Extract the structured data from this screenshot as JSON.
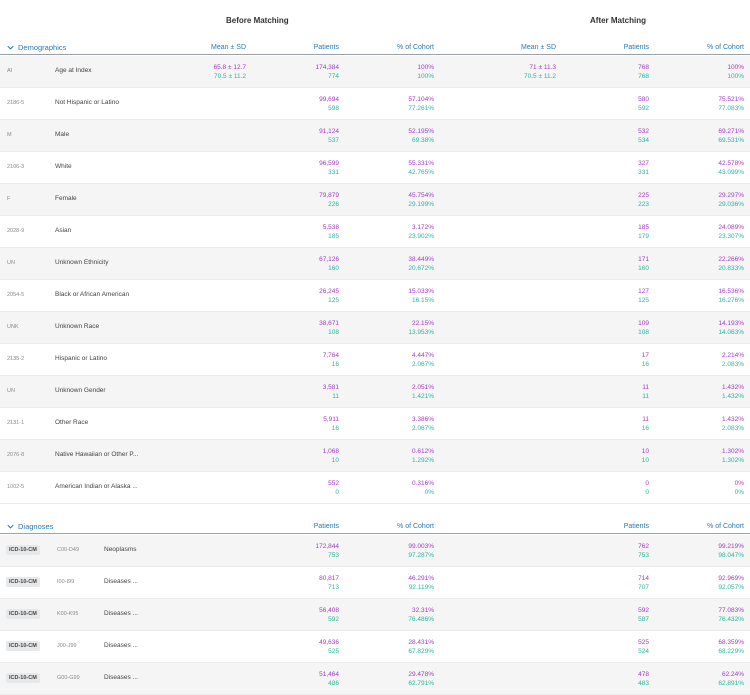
{
  "header": {
    "before": "Before Matching",
    "after": "After Matching"
  },
  "demographics": {
    "title": "Demographics",
    "columns": {
      "mean_before": "Mean ± SD",
      "patients_before": "Patients",
      "pct_before": "% of Cohort",
      "mean_after": "Mean ± SD",
      "patients_after": "Patients",
      "pct_after": "% of Cohort"
    },
    "rows": [
      {
        "code": "AI",
        "label": "Age at Index",
        "mean_b": [
          "65.8 ± 12.7",
          "70.5 ± 11.2"
        ],
        "pat_b": [
          "174,384",
          "774"
        ],
        "pct_b": [
          "100%",
          "100%"
        ],
        "mean_a": [
          "71 ± 11.3",
          "70.5 ± 11.2"
        ],
        "pat_a": [
          "768",
          "768"
        ],
        "pct_a": [
          "100%",
          "100%"
        ]
      },
      {
        "code": "2186-5",
        "label": "Not Hispanic or Latino",
        "mean_b": [
          "",
          ""
        ],
        "pat_b": [
          "99,694",
          "598"
        ],
        "pct_b": [
          "57.104%",
          "77.261%"
        ],
        "mean_a": [
          "",
          ""
        ],
        "pat_a": [
          "580",
          "592"
        ],
        "pct_a": [
          "75.521%",
          "77.083%"
        ]
      },
      {
        "code": "M",
        "label": "Male",
        "mean_b": [
          "",
          ""
        ],
        "pat_b": [
          "91,124",
          "537"
        ],
        "pct_b": [
          "52.195%",
          "69.38%"
        ],
        "mean_a": [
          "",
          ""
        ],
        "pat_a": [
          "532",
          "534"
        ],
        "pct_a": [
          "69.271%",
          "69.531%"
        ]
      },
      {
        "code": "2106-3",
        "label": "White",
        "mean_b": [
          "",
          ""
        ],
        "pat_b": [
          "96,599",
          "331"
        ],
        "pct_b": [
          "55.331%",
          "42.765%"
        ],
        "mean_a": [
          "",
          ""
        ],
        "pat_a": [
          "327",
          "331"
        ],
        "pct_a": [
          "42.578%",
          "43.099%"
        ]
      },
      {
        "code": "F",
        "label": "Female",
        "mean_b": [
          "",
          ""
        ],
        "pat_b": [
          "79,879",
          "226"
        ],
        "pct_b": [
          "45.754%",
          "29.199%"
        ],
        "mean_a": [
          "",
          ""
        ],
        "pat_a": [
          "225",
          "223"
        ],
        "pct_a": [
          "29.297%",
          "29.036%"
        ]
      },
      {
        "code": "2028-9",
        "label": "Asian",
        "mean_b": [
          "",
          ""
        ],
        "pat_b": [
          "5,538",
          "185"
        ],
        "pct_b": [
          "3.172%",
          "23.902%"
        ],
        "mean_a": [
          "",
          ""
        ],
        "pat_a": [
          "185",
          "179"
        ],
        "pct_a": [
          "24.089%",
          "23.307%"
        ]
      },
      {
        "code": "UN",
        "label": "Unknown Ethnicity",
        "mean_b": [
          "",
          ""
        ],
        "pat_b": [
          "67,126",
          "160"
        ],
        "pct_b": [
          "38.449%",
          "20.672%"
        ],
        "mean_a": [
          "",
          ""
        ],
        "pat_a": [
          "171",
          "160"
        ],
        "pct_a": [
          "22.266%",
          "20.833%"
        ]
      },
      {
        "code": "2054-5",
        "label": "Black or African American",
        "mean_b": [
          "",
          ""
        ],
        "pat_b": [
          "26,245",
          "125"
        ],
        "pct_b": [
          "15.033%",
          "16.15%"
        ],
        "mean_a": [
          "",
          ""
        ],
        "pat_a": [
          "127",
          "125"
        ],
        "pct_a": [
          "16.536%",
          "16.276%"
        ]
      },
      {
        "code": "UNK",
        "label": "Unknown Race",
        "mean_b": [
          "",
          ""
        ],
        "pat_b": [
          "38,671",
          "108"
        ],
        "pct_b": [
          "22.15%",
          "13.953%"
        ],
        "mean_a": [
          "",
          ""
        ],
        "pat_a": [
          "109",
          "108"
        ],
        "pct_a": [
          "14.193%",
          "14.063%"
        ]
      },
      {
        "code": "2135-2",
        "label": "Hispanic or Latino",
        "mean_b": [
          "",
          ""
        ],
        "pat_b": [
          "7,764",
          "16"
        ],
        "pct_b": [
          "4.447%",
          "2.067%"
        ],
        "mean_a": [
          "",
          ""
        ],
        "pat_a": [
          "17",
          "16"
        ],
        "pct_a": [
          "2.214%",
          "2.083%"
        ]
      },
      {
        "code": "UN",
        "label": "Unknown Gender",
        "mean_b": [
          "",
          ""
        ],
        "pat_b": [
          "3,581",
          "11"
        ],
        "pct_b": [
          "2.051%",
          "1.421%"
        ],
        "mean_a": [
          "",
          ""
        ],
        "pat_a": [
          "11",
          "11"
        ],
        "pct_a": [
          "1.432%",
          "1.432%"
        ]
      },
      {
        "code": "2131-1",
        "label": "Other Race",
        "mean_b": [
          "",
          ""
        ],
        "pat_b": [
          "5,911",
          "16"
        ],
        "pct_b": [
          "3.386%",
          "2.067%"
        ],
        "mean_a": [
          "",
          ""
        ],
        "pat_a": [
          "11",
          "16"
        ],
        "pct_a": [
          "1.432%",
          "2.083%"
        ]
      },
      {
        "code": "2076-8",
        "label": "Native Hawaiian or Other P...",
        "mean_b": [
          "",
          ""
        ],
        "pat_b": [
          "1,068",
          "10"
        ],
        "pct_b": [
          "0.612%",
          "1.292%"
        ],
        "mean_a": [
          "",
          ""
        ],
        "pat_a": [
          "10",
          "10"
        ],
        "pct_a": [
          "1.302%",
          "1.302%"
        ]
      },
      {
        "code": "1002-5",
        "label": "American Indian or Alaska ...",
        "mean_b": [
          "",
          ""
        ],
        "pat_b": [
          "552",
          "0"
        ],
        "pct_b": [
          "0.316%",
          "0%"
        ],
        "mean_a": [
          "",
          ""
        ],
        "pat_a": [
          "0",
          "0"
        ],
        "pct_a": [
          "0%",
          "0%"
        ]
      }
    ]
  },
  "diagnoses": {
    "title": "Diagnoses",
    "columns": {
      "patients_before": "Patients",
      "pct_before": "% of Cohort",
      "patients_after": "Patients",
      "pct_after": "% of Cohort"
    },
    "rows": [
      {
        "badge": "ICD-10-CM",
        "code": "C00-D49",
        "label": "Neoplasms",
        "pat_b": [
          "172,844",
          "753"
        ],
        "pct_b": [
          "99.003%",
          "97.287%"
        ],
        "pat_a": [
          "762",
          "753"
        ],
        "pct_a": [
          "99.219%",
          "98.047%"
        ]
      },
      {
        "badge": "ICD-10-CM",
        "code": "I00-I99",
        "label": "Diseases ...",
        "pat_b": [
          "80,817",
          "713"
        ],
        "pct_b": [
          "46.291%",
          "92.119%"
        ],
        "pat_a": [
          "714",
          "707"
        ],
        "pct_a": [
          "92.969%",
          "92.057%"
        ]
      },
      {
        "badge": "ICD-10-CM",
        "code": "K00-K95",
        "label": "Diseases ...",
        "pat_b": [
          "56,408",
          "592"
        ],
        "pct_b": [
          "32.31%",
          "76.486%"
        ],
        "pat_a": [
          "592",
          "587"
        ],
        "pct_a": [
          "77.083%",
          "76.432%"
        ]
      },
      {
        "badge": "ICD-10-CM",
        "code": "J00-J99",
        "label": "Diseases ...",
        "pat_b": [
          "49,636",
          "525"
        ],
        "pct_b": [
          "28.431%",
          "67.829%"
        ],
        "pat_a": [
          "525",
          "524"
        ],
        "pct_a": [
          "68.359%",
          "68.229%"
        ]
      },
      {
        "badge": "ICD-10-CM",
        "code": "G00-G99",
        "label": "Diseases ...",
        "pat_b": [
          "51,464",
          "486"
        ],
        "pct_b": [
          "29.478%",
          "62.791%"
        ],
        "pat_a": [
          "478",
          "483"
        ],
        "pct_a": [
          "62.24%",
          "62.891%"
        ]
      }
    ]
  },
  "colors": {
    "cohort_1": "#a23ac8",
    "cohort_2": "#2bb59a",
    "accent": "#2a7ab0"
  },
  "icons": {
    "section_toggle": "chevron-down-icon"
  }
}
